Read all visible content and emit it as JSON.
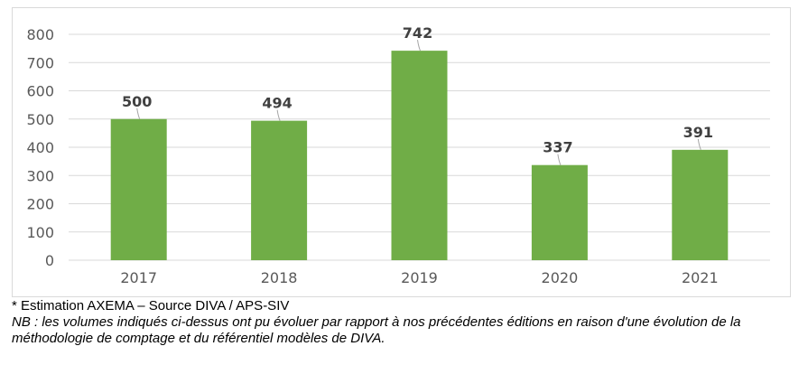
{
  "chart_data": {
    "type": "bar",
    "title": "",
    "xlabel": "",
    "ylabel": "",
    "categories": [
      "2017",
      "2018",
      "2019",
      "2020",
      "2021"
    ],
    "values": [
      500,
      494,
      742,
      337,
      391
    ],
    "data_labels": [
      "500",
      "494",
      "742",
      "337",
      "391"
    ],
    "y_ticks": [
      "0",
      "100",
      "200",
      "300",
      "400",
      "500",
      "600",
      "700",
      "800"
    ],
    "ylim": [
      0,
      800
    ],
    "grid": true,
    "legend": "none",
    "bar_color": "#70ad47",
    "grid_color": "#d9d9d9"
  },
  "footnotes": {
    "source": "* Estimation AXEMA – Source DIVA / APS-SIV",
    "nb": "NB : les volumes indiqués ci-dessus ont pu évoluer par rapport à nos précédentes éditions en raison d'une évolution de la méthodologie de comptage et du référentiel modèles de DIVA."
  }
}
